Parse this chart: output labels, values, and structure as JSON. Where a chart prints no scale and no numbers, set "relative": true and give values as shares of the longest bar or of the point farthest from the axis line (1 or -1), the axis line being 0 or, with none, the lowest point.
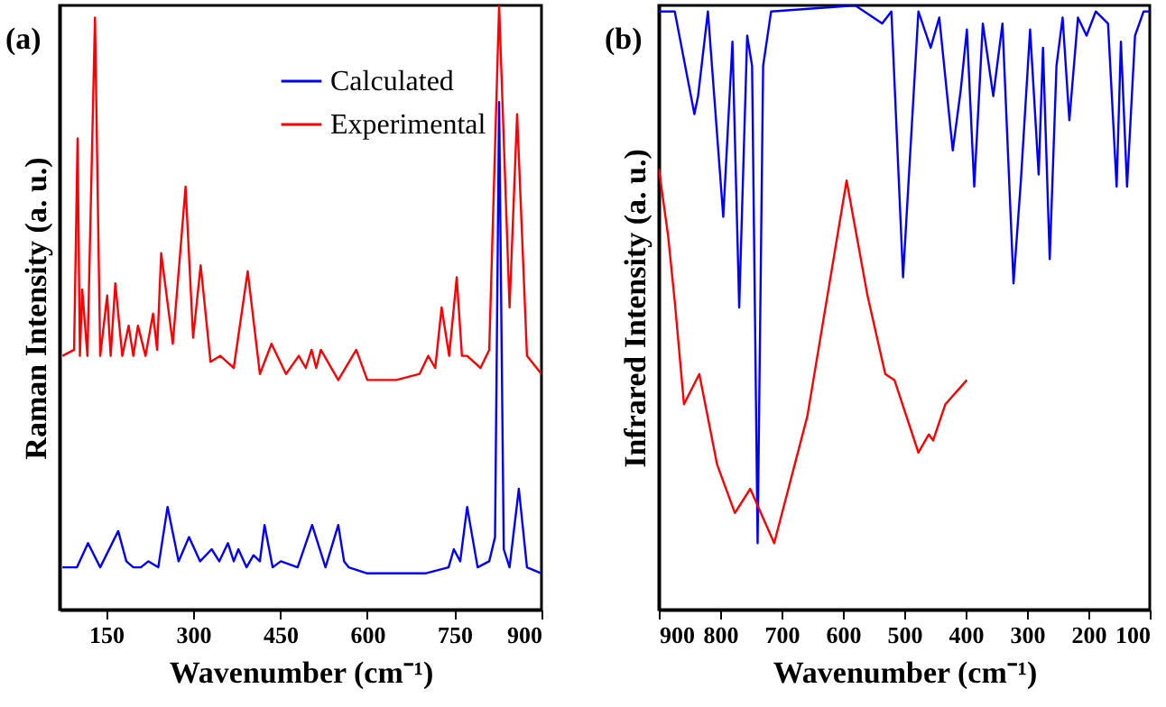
{
  "chart_data": [
    {
      "type": "line",
      "title": "(a)",
      "xlabel": "Wavenumber (cm⁻¹)",
      "ylabel": "Raman Intensity (a. u.)",
      "relative": true,
      "xlim": [
        70,
        900
      ],
      "xticks": [
        150,
        300,
        450,
        600,
        750,
        900
      ],
      "legend": "top right",
      "tick_labels": "x",
      "series": [
        {
          "name": "Calculated",
          "color": "#0000ff",
          "x": [
            75,
            100,
            119,
            140,
            171,
            185,
            197,
            210,
            223,
            240,
            256,
            275,
            293,
            312,
            332,
            345,
            360,
            370,
            378,
            392,
            404,
            415,
            423,
            437,
            451,
            480,
            505,
            528,
            550,
            560,
            568,
            600,
            700,
            740,
            749,
            760,
            772,
            790,
            810,
            820,
            827,
            835,
            845,
            861,
            875,
            900
          ],
          "values": [
            0.07,
            0.07,
            0.11,
            0.07,
            0.13,
            0.08,
            0.07,
            0.07,
            0.08,
            0.07,
            0.17,
            0.08,
            0.12,
            0.08,
            0.1,
            0.08,
            0.11,
            0.08,
            0.1,
            0.07,
            0.09,
            0.08,
            0.14,
            0.07,
            0.08,
            0.07,
            0.14,
            0.07,
            0.14,
            0.08,
            0.07,
            0.06,
            0.06,
            0.07,
            0.1,
            0.08,
            0.17,
            0.07,
            0.08,
            0.12,
            0.84,
            0.1,
            0.07,
            0.2,
            0.07,
            0.06
          ]
        },
        {
          "name": "Experimental",
          "color": "#ff0000",
          "x": [
            75,
            95,
            101,
            105,
            109,
            118,
            131,
            140,
            152,
            158,
            166,
            178,
            189,
            197,
            205,
            218,
            231,
            238,
            245,
            265,
            287,
            300,
            313,
            330,
            347,
            370,
            394,
            415,
            435,
            460,
            482,
            494,
            504,
            512,
            520,
            550,
            581,
            600,
            650,
            690,
            705,
            717,
            728,
            741,
            754,
            763,
            772,
            795,
            810,
            827,
            845,
            858,
            875,
            900
          ],
          "values": [
            0.42,
            0.43,
            0.78,
            0.42,
            0.53,
            0.42,
            0.98,
            0.42,
            0.52,
            0.42,
            0.54,
            0.42,
            0.47,
            0.42,
            0.47,
            0.42,
            0.49,
            0.43,
            0.59,
            0.44,
            0.7,
            0.45,
            0.57,
            0.41,
            0.42,
            0.4,
            0.56,
            0.39,
            0.44,
            0.39,
            0.42,
            0.4,
            0.43,
            0.4,
            0.43,
            0.38,
            0.43,
            0.38,
            0.38,
            0.39,
            0.42,
            0.4,
            0.5,
            0.42,
            0.55,
            0.42,
            0.42,
            0.4,
            0.43,
            1.0,
            0.5,
            0.82,
            0.42,
            0.39
          ]
        }
      ]
    },
    {
      "type": "line",
      "title": "(b)",
      "xlabel": "Wavenumber (cm⁻¹)",
      "ylabel": "Infrared Intensity (a. u.)",
      "relative": true,
      "xlim": [
        900,
        100
      ],
      "xticks": [
        900,
        800,
        700,
        600,
        500,
        400,
        300,
        200,
        100
      ],
      "tick_labels": "x",
      "series": [
        {
          "color": "#0000ff",
          "x": [
            900,
            874,
            842,
            836,
            820,
            795,
            780,
            769,
            756,
            748,
            739,
            730,
            717,
            580,
            536,
            521,
            502,
            477,
            457,
            443,
            421,
            408,
            398,
            386,
            372,
            355,
            340,
            322,
            310,
            295,
            281,
            274,
            263,
            252,
            242,
            231,
            217,
            203,
            188,
            168,
            154,
            147,
            137,
            124,
            110,
            100
          ],
          "values": [
            0.99,
            0.99,
            0.82,
            0.85,
            0.99,
            0.65,
            0.94,
            0.5,
            0.95,
            0.9,
            0.11,
            0.9,
            0.99,
            1.0,
            0.97,
            0.99,
            0.55,
            0.99,
            0.93,
            0.98,
            0.76,
            0.86,
            0.96,
            0.7,
            0.97,
            0.85,
            0.97,
            0.54,
            0.71,
            0.96,
            0.72,
            0.93,
            0.58,
            0.9,
            0.98,
            0.81,
            0.98,
            0.95,
            0.99,
            0.97,
            0.7,
            0.94,
            0.7,
            0.95,
            0.99,
            0.99
          ]
        },
        {
          "color": "#ff0000",
          "x": [
            900,
            885,
            874,
            859,
            834,
            805,
            776,
            751,
            712,
            658,
            594,
            560,
            531,
            516,
            477,
            460,
            453,
            433,
            398
          ],
          "values": [
            0.73,
            0.62,
            0.51,
            0.34,
            0.39,
            0.24,
            0.16,
            0.2,
            0.11,
            0.32,
            0.71,
            0.52,
            0.39,
            0.38,
            0.26,
            0.29,
            0.28,
            0.34,
            0.38
          ]
        }
      ]
    }
  ]
}
